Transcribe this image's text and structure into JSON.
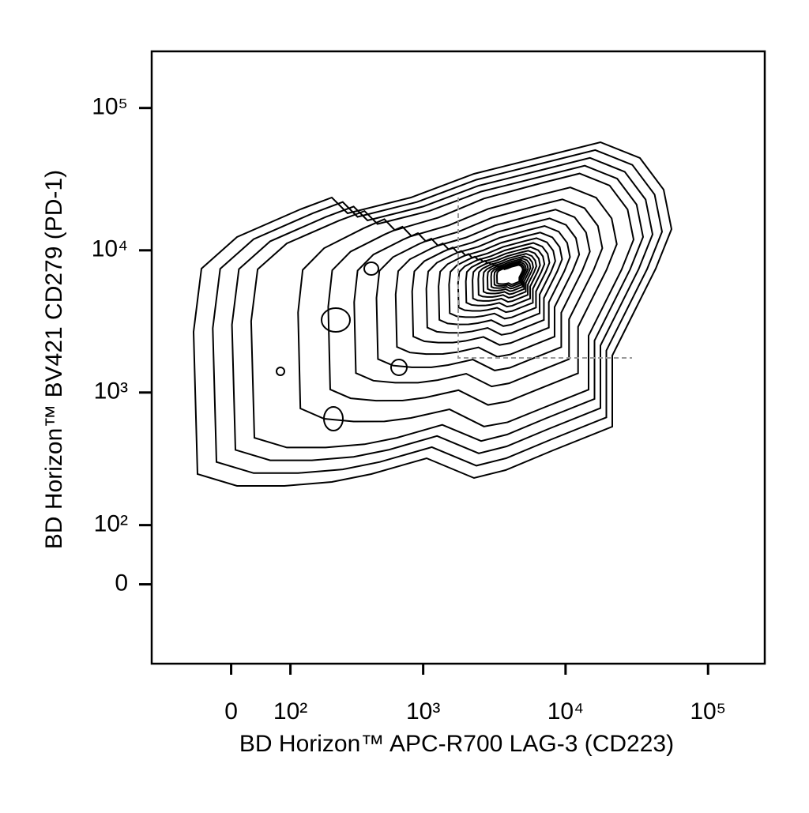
{
  "chart_data": {
    "type": "contour",
    "x_label": "BD Horizon™ APC-R700 LAG-3 (CD223)",
    "y_label": "BD Horizon™ BV421 CD279 (PD-1)",
    "xscale": "biexponential",
    "yscale": "biexponential",
    "xlim": [
      -150,
      250000
    ],
    "ylim": [
      -150,
      250000
    ],
    "xticks": [
      {
        "value": 0,
        "label": "0"
      },
      {
        "value": 100,
        "label": "10²"
      },
      {
        "value": 1000,
        "label": "10³"
      },
      {
        "value": 10000,
        "label": "10⁴"
      },
      {
        "value": 100000,
        "label": "10⁵"
      }
    ],
    "yticks": [
      {
        "value": 0,
        "label": "0"
      },
      {
        "value": 100,
        "label": "10²"
      },
      {
        "value": 1000,
        "label": "10³"
      },
      {
        "value": 10000,
        "label": "10⁴"
      },
      {
        "value": 100000,
        "label": "10⁵"
      }
    ]
  }
}
